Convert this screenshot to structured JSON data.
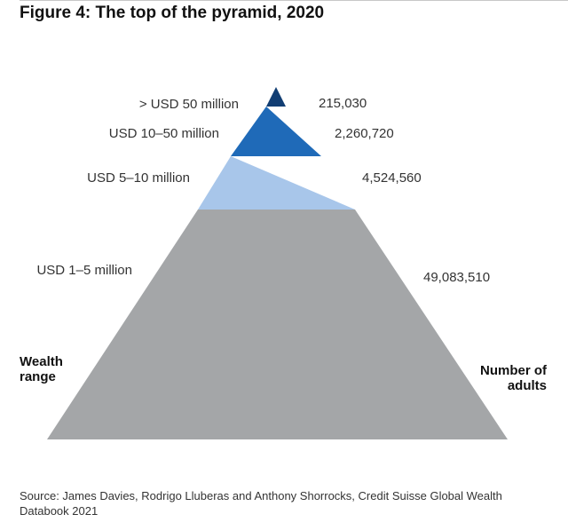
{
  "title": "Figure 4: The top of the pyramid, 2020",
  "tiers": [
    {
      "range": "> USD 50 million",
      "adults": "215,030",
      "color": "#123e73"
    },
    {
      "range": "USD 10–50 million",
      "adults": "2,260,720",
      "color": "#1f6ab8"
    },
    {
      "range": "USD 5–10 million",
      "adults": "4,524,560",
      "color": "#a8c6ea"
    },
    {
      "range": "USD 1–5 million",
      "adults": "49,083,510",
      "color": "#a4a6a8"
    }
  ],
  "axis_left": "Wealth range",
  "axis_right": "Number of adults",
  "source": "Source: James Davies, Rodrigo Lluberas and Anthony Shorrocks, Credit Suisse Global Wealth Databook 2021"
}
